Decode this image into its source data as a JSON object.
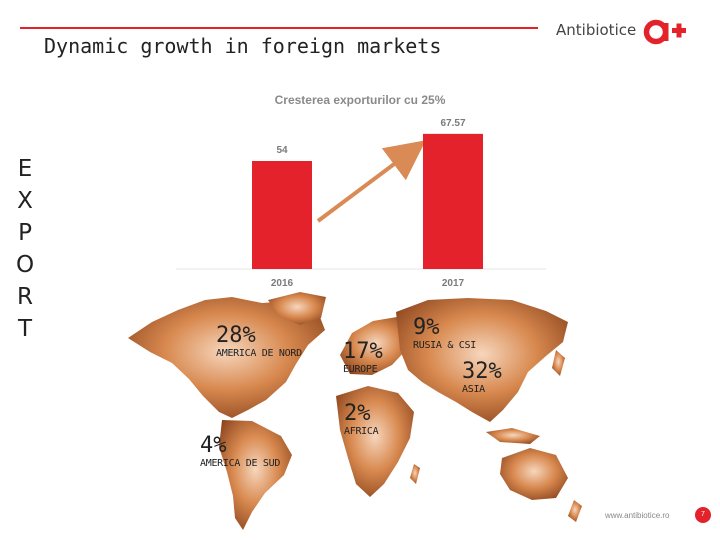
{
  "slide": {
    "title": "Dynamic growth in foreign markets",
    "vertical_word": [
      "E",
      "X",
      "P",
      "O",
      "R",
      "T"
    ],
    "footer_url": "www.antibiotice.ro",
    "page_number": "7"
  },
  "logo": {
    "text": "Antibiotice",
    "mark": "a+",
    "color": "#e3222b"
  },
  "chart_data": {
    "type": "bar",
    "title": "Cresterea exporturilor cu 25%",
    "categories": [
      "2016",
      "2017"
    ],
    "values": [
      54,
      67.57
    ],
    "value_labels": [
      "54",
      "67.57"
    ],
    "ylim": [
      0,
      70
    ],
    "bar_color": "#e3222b",
    "trend_arrow": true,
    "grid": false
  },
  "map": {
    "regions": [
      {
        "id": "north-america",
        "pct": "28%",
        "name": "AMERICA DE NORD"
      },
      {
        "id": "europe",
        "pct": "17%",
        "name": "EUROPE"
      },
      {
        "id": "russia-cis",
        "pct": "9%",
        "name": "RUSIA & CSI"
      },
      {
        "id": "asia",
        "pct": "32%",
        "name": "ASIA"
      },
      {
        "id": "africa",
        "pct": "2%",
        "name": "AFRICA"
      },
      {
        "id": "south-america",
        "pct": "4%",
        "name": "AMERICA DE SUD"
      }
    ]
  }
}
